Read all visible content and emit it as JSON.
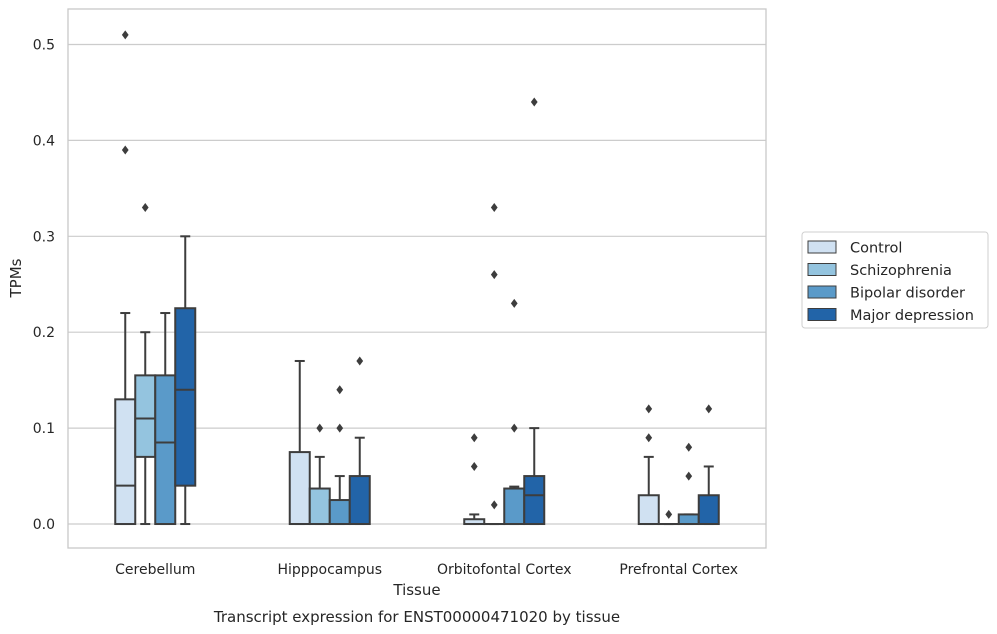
{
  "chart_data": {
    "type": "box",
    "xlabel": "Tissue",
    "ylabel": "TPMs",
    "caption": "Transcript expression for ENST00000471020 by tissue",
    "ylim": [
      -0.025,
      0.537
    ],
    "yticks": [
      0.0,
      0.1,
      0.2,
      0.3,
      0.4,
      0.5
    ],
    "ytick_labels": [
      "0.0",
      "0.1",
      "0.2",
      "0.3",
      "0.4",
      "0.5"
    ],
    "grid": "horizontal",
    "legend_position": "right",
    "categories": [
      "Cerebellum",
      "Hipppocampus",
      "Orbitofontal Cortex",
      "Prefrontal Cortex"
    ],
    "series": [
      {
        "name": "Control",
        "color": "#d0e1f2",
        "boxes": [
          {
            "whislo": 0.0,
            "q1": 0.0,
            "med": 0.04,
            "q3": 0.13,
            "whishi": 0.22,
            "fliers": [
              0.51,
              0.39
            ]
          },
          {
            "whislo": 0.0,
            "q1": 0.0,
            "med": 0.0,
            "q3": 0.075,
            "whishi": 0.17,
            "fliers": []
          },
          {
            "whislo": 0.0,
            "q1": 0.0,
            "med": 0.0,
            "q3": 0.005,
            "whishi": 0.01,
            "fliers": [
              0.09,
              0.06
            ]
          },
          {
            "whislo": 0.0,
            "q1": 0.0,
            "med": 0.0,
            "q3": 0.03,
            "whishi": 0.07,
            "fliers": [
              0.12,
              0.09
            ]
          }
        ]
      },
      {
        "name": "Schizophrenia",
        "color": "#94c4df",
        "boxes": [
          {
            "whislo": 0.0,
            "q1": 0.07,
            "med": 0.11,
            "q3": 0.155,
            "whishi": 0.2,
            "fliers": [
              0.33
            ]
          },
          {
            "whislo": 0.0,
            "q1": 0.0,
            "med": 0.0,
            "q3": 0.037,
            "whishi": 0.07,
            "fliers": [
              0.1
            ]
          },
          {
            "whislo": 0.0,
            "q1": 0.0,
            "med": 0.0,
            "q3": 0.0,
            "whishi": 0.0,
            "fliers": [
              0.33,
              0.26,
              0.02
            ]
          },
          {
            "whislo": 0.0,
            "q1": 0.0,
            "med": 0.0,
            "q3": 0.0,
            "whishi": 0.0,
            "fliers": [
              0.01
            ]
          }
        ]
      },
      {
        "name": "Bipolar disorder",
        "color": "#5a9ac9",
        "boxes": [
          {
            "whislo": 0.0,
            "q1": 0.0,
            "med": 0.085,
            "q3": 0.155,
            "whishi": 0.22,
            "fliers": []
          },
          {
            "whislo": 0.0,
            "q1": 0.0,
            "med": 0.0,
            "q3": 0.025,
            "whishi": 0.05,
            "fliers": [
              0.14,
              0.1
            ]
          },
          {
            "whislo": 0.0,
            "q1": 0.0,
            "med": 0.0,
            "q3": 0.037,
            "whishi": 0.039,
            "fliers": [
              0.23,
              0.1
            ]
          },
          {
            "whislo": 0.0,
            "q1": 0.0,
            "med": 0.0,
            "q3": 0.01,
            "whishi": 0.01,
            "fliers": [
              0.08,
              0.05
            ]
          }
        ]
      },
      {
        "name": "Major depression",
        "color": "#2264a8",
        "boxes": [
          {
            "whislo": 0.0,
            "q1": 0.04,
            "med": 0.14,
            "q3": 0.225,
            "whishi": 0.3,
            "fliers": []
          },
          {
            "whislo": 0.0,
            "q1": 0.0,
            "med": 0.0,
            "q3": 0.05,
            "whishi": 0.09,
            "fliers": [
              0.17
            ]
          },
          {
            "whislo": 0.0,
            "q1": 0.0,
            "med": 0.03,
            "q3": 0.05,
            "whishi": 0.1,
            "fliers": [
              0.44
            ]
          },
          {
            "whislo": 0.0,
            "q1": 0.0,
            "med": 0.0,
            "q3": 0.03,
            "whishi": 0.06,
            "fliers": [
              0.12
            ]
          }
        ]
      }
    ],
    "style": {
      "line_color": "#3d3d3d",
      "grid_color": "#cccccc",
      "frame_color": "#c8c8c8",
      "legend_border": "#cfcfcf"
    }
  }
}
